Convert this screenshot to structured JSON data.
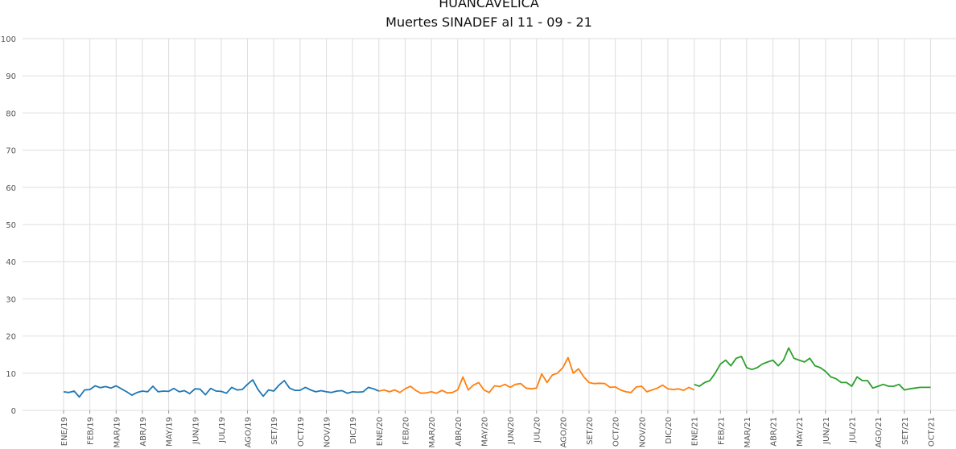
{
  "chart_data": {
    "type": "line",
    "title": "HUANCAVELICA",
    "subtitle": "Muertes SINADEF al 11 - 09 - 21",
    "xlabel": "",
    "ylabel": "",
    "ylim": [
      0,
      100
    ],
    "yticks": [
      0,
      10,
      20,
      30,
      40,
      50,
      60,
      70,
      80,
      90,
      100
    ],
    "grid": true,
    "legend": "none",
    "xticks": [
      "ENE/19",
      "FEB/19",
      "MAR/19",
      "ABR/19",
      "MAY/19",
      "JUN/19",
      "JUL/19",
      "AGO/19",
      "SET/19",
      "OCT/19",
      "NOV/19",
      "DIC/19",
      "ENE/20",
      "FEB/20",
      "MAR/20",
      "ABR/20",
      "MAY/20",
      "JUN/20",
      "JUL/20",
      "AGO/20",
      "SET/20",
      "OCT/20",
      "NOV/20",
      "DIC/20",
      "ENE/21",
      "FEB/21",
      "MAR/21",
      "ABR/21",
      "MAY/21",
      "JUN/21",
      "JUL/21",
      "AGO/21",
      "SET/21",
      "OCT/21"
    ],
    "x_unit": "month index (0 = ENE/19)",
    "series": [
      {
        "color": "#1f77b4",
        "x": [
          0,
          0.2,
          0.4,
          0.6,
          0.8,
          1.0,
          1.2,
          1.4,
          1.6,
          1.8,
          2.0,
          2.2,
          2.4,
          2.6,
          2.8,
          3.0,
          3.2,
          3.4,
          3.6,
          3.8,
          4.0,
          4.2,
          4.4,
          4.6,
          4.8,
          5.0,
          5.2,
          5.4,
          5.6,
          5.8,
          6.0,
          6.2,
          6.4,
          6.6,
          6.8,
          7.0,
          7.2,
          7.4,
          7.6,
          7.8,
          8.0,
          8.2,
          8.4,
          8.6,
          8.8,
          9.0,
          9.2,
          9.4,
          9.6,
          9.8,
          10.0,
          10.2,
          10.4,
          10.6,
          10.8,
          11.0,
          11.2,
          11.4,
          11.6,
          11.8,
          12.0
        ],
        "y": [
          5.0,
          4.8,
          5.2,
          3.6,
          5.5,
          5.6,
          6.6,
          6.1,
          6.4,
          6.0,
          6.6,
          5.8,
          5.0,
          4.1,
          4.8,
          5.2,
          5.0,
          6.5,
          5.0,
          5.2,
          5.1,
          5.9,
          5.0,
          5.3,
          4.5,
          5.8,
          5.7,
          4.2,
          5.9,
          5.2,
          5.1,
          4.6,
          6.2,
          5.5,
          5.6,
          7.0,
          8.2,
          5.6,
          3.8,
          5.5,
          5.2,
          6.8,
          8.0,
          6.0,
          5.4,
          5.4,
          6.2,
          5.5,
          5.0,
          5.3,
          5.0,
          4.8,
          5.2,
          5.3,
          4.6,
          5.0,
          4.9,
          5.0,
          6.2,
          5.8,
          5.2
        ]
      },
      {
        "color": "#ff7f0e",
        "x": [
          12.0,
          12.2,
          12.4,
          12.6,
          12.8,
          13.0,
          13.2,
          13.4,
          13.6,
          13.8,
          14.0,
          14.2,
          14.4,
          14.6,
          14.8,
          15.0,
          15.2,
          15.4,
          15.6,
          15.8,
          16.0,
          16.2,
          16.4,
          16.6,
          16.8,
          17.0,
          17.2,
          17.4,
          17.6,
          17.8,
          18.0,
          18.2,
          18.4,
          18.6,
          18.8,
          19.0,
          19.2,
          19.4,
          19.6,
          19.8,
          20.0,
          20.2,
          20.4,
          20.6,
          20.8,
          21.0,
          21.2,
          21.4,
          21.6,
          21.8,
          22.0,
          22.2,
          22.4,
          22.6,
          22.8,
          23.0,
          23.2,
          23.4,
          23.6,
          23.8,
          24.0
        ],
        "y": [
          5.2,
          5.5,
          5.0,
          5.5,
          4.8,
          5.8,
          6.5,
          5.4,
          4.6,
          4.7,
          5.0,
          4.6,
          5.4,
          4.7,
          4.8,
          5.5,
          9.0,
          5.5,
          6.8,
          7.5,
          5.5,
          4.8,
          6.6,
          6.4,
          7.0,
          6.2,
          7.0,
          7.2,
          6.0,
          5.8,
          6.0,
          9.8,
          7.5,
          9.5,
          10.0,
          11.5,
          14.2,
          10.0,
          11.2,
          9.0,
          7.5,
          7.2,
          7.3,
          7.2,
          6.2,
          6.3,
          5.5,
          5.0,
          4.8,
          6.3,
          6.5,
          5.0,
          5.5,
          6.0,
          6.8,
          5.8,
          5.6,
          5.8,
          5.4,
          6.2,
          5.5
        ]
      },
      {
        "color": "#2ca02c",
        "x": [
          24.0,
          24.2,
          24.4,
          24.6,
          24.8,
          25.0,
          25.2,
          25.4,
          25.6,
          25.8,
          26.0,
          26.2,
          26.4,
          26.6,
          26.8,
          27.0,
          27.2,
          27.4,
          27.6,
          27.8,
          28.0,
          28.2,
          28.4,
          28.6,
          28.8,
          29.0,
          29.2,
          29.4,
          29.6,
          29.8,
          30.0,
          30.2,
          30.4,
          30.6,
          30.8,
          31.0,
          31.2,
          31.4,
          31.6,
          31.8,
          32.0,
          32.2,
          32.4,
          32.6,
          32.8,
          33.0
        ],
        "y": [
          7.0,
          6.5,
          7.5,
          8.0,
          10.0,
          12.5,
          13.5,
          12.0,
          14.0,
          14.5,
          11.5,
          11.0,
          11.5,
          12.5,
          13.0,
          13.5,
          12.0,
          13.5,
          16.8,
          14.0,
          13.5,
          13.0,
          14.0,
          12.0,
          11.5,
          10.5,
          9.0,
          8.5,
          7.5,
          7.5,
          6.5,
          9.0,
          8.0,
          8.0,
          6.0,
          6.5,
          7.0,
          6.5,
          6.5,
          7.0,
          5.5,
          5.8,
          6.0,
          6.2,
          6.2,
          6.2
        ]
      }
    ]
  }
}
